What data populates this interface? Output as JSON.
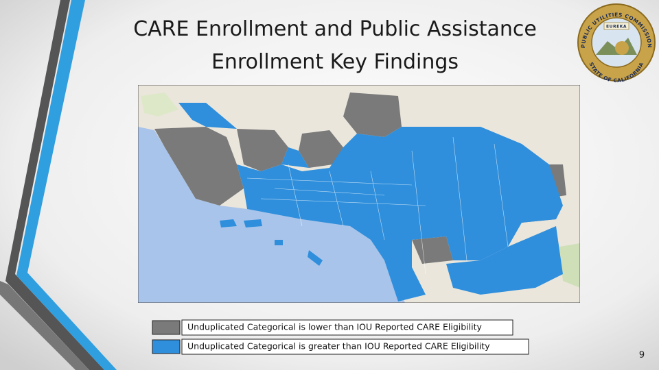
{
  "slide": {
    "title": [
      "CARE Enrollment and Public Assistance",
      "Enrollment Key Findings"
    ],
    "seal": {
      "top_text": "PUBLIC UTILITIES COMMISSION",
      "bottom_text": "STATE OF CALIFORNIA",
      "banner": "EUREKA"
    },
    "legend": [
      {
        "label": "Unduplicated Categorical is lower than IOU Reported CARE Eligibility",
        "color": "#7a7a7a"
      },
      {
        "label": "Unduplicated Categorical is greater than IOU Reported CARE Eligibility",
        "color": "#2f8fdc"
      }
    ],
    "page_number": "9"
  }
}
